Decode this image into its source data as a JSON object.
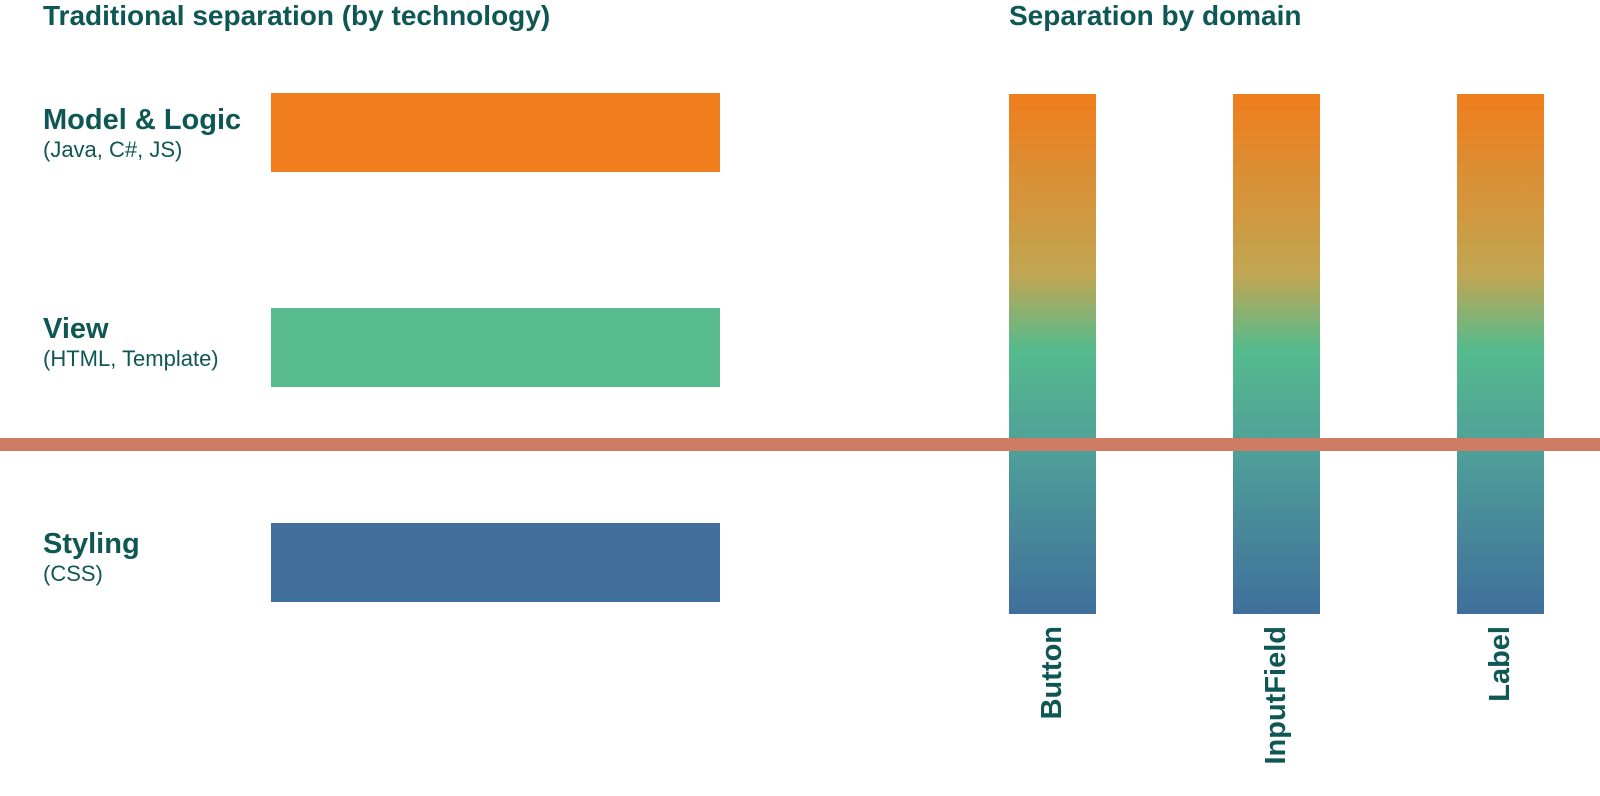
{
  "left_panel": {
    "heading": "Traditional separation (by technology)",
    "layers": [
      {
        "title": "Model & Logic",
        "subtitle": "(Java, C#, JS)",
        "color": "#f07e1c"
      },
      {
        "title": "View",
        "subtitle": "(HTML, Template)",
        "color": "#57bb8f"
      },
      {
        "title": "Styling",
        "subtitle": "(CSS)",
        "color": "#3f6f9a"
      }
    ]
  },
  "right_panel": {
    "heading": "Separation by domain",
    "columns": [
      {
        "label": "Button"
      },
      {
        "label": "InputField"
      },
      {
        "label": "Label"
      }
    ],
    "gradient_colors": [
      "#f07d1c",
      "#c0a653",
      "#55bb8d",
      "#4e9d99",
      "#3f6f9a"
    ]
  },
  "divider": {
    "color": "#cd7b63"
  },
  "text_color": "#0e5754"
}
